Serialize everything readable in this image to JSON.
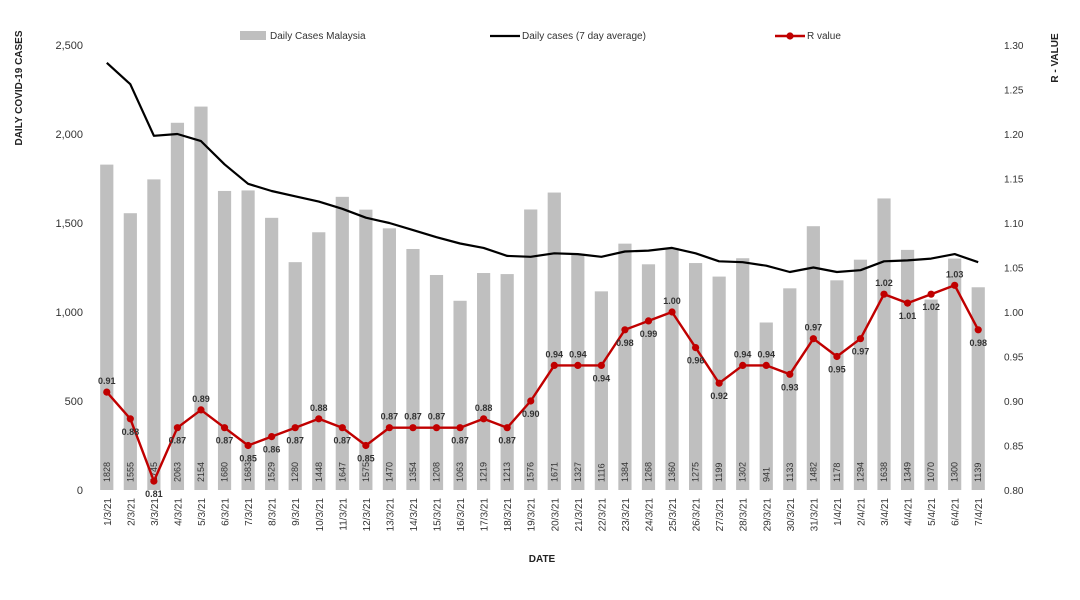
{
  "chart_data": {
    "type": "bar",
    "title": "",
    "xlabel": "DATE",
    "ylabel_left": "DAILY COVID-19 CASES",
    "ylabel_right": "R - VALUE",
    "ylim_left": [
      0,
      2500
    ],
    "ylim_right": [
      0.8,
      1.3
    ],
    "yticks_left": [
      "0",
      "500",
      "1,000",
      "1,500",
      "2,000",
      "2,500"
    ],
    "yticks_right": [
      "0.80",
      "0.85",
      "0.90",
      "0.95",
      "1.00",
      "1.05",
      "1.10",
      "1.15",
      "1.20",
      "1.25",
      "1.30"
    ],
    "grid": false,
    "legend_position": "top",
    "categories": [
      "1/3/21",
      "2/3/21",
      "3/3/21",
      "4/3/21",
      "5/3/21",
      "6/3/21",
      "7/3/21",
      "8/3/21",
      "9/3/21",
      "10/3/21",
      "11/3/21",
      "12/3/21",
      "13/3/21",
      "14/3/21",
      "15/3/21",
      "16/3/21",
      "17/3/21",
      "18/3/21",
      "19/3/21",
      "20/3/21",
      "21/3/21",
      "22/3/21",
      "23/3/21",
      "24/3/21",
      "25/3/21",
      "26/3/21",
      "27/3/21",
      "28/3/21",
      "29/3/21",
      "30/3/21",
      "31/3/21",
      "1/4/21",
      "2/4/21",
      "3/4/21",
      "4/4/21",
      "5/4/21",
      "6/4/21",
      "7/4/21"
    ],
    "series": [
      {
        "name": "Daily Cases Malaysia",
        "type": "bar",
        "axis": "left",
        "color": "#bfbfbf",
        "values": [
          1828,
          1555,
          1745,
          2063,
          2154,
          1680,
          1683,
          1529,
          1280,
          1448,
          1647,
          1575,
          1470,
          1354,
          1208,
          1063,
          1219,
          1213,
          1576,
          1671,
          1327,
          1116,
          1384,
          1268,
          1360,
          1275,
          1199,
          1302,
          941,
          1133,
          1482,
          1178,
          1294,
          1638,
          1349,
          1070,
          1300,
          1139
        ],
        "labels": [
          "1828",
          "1555",
          "1745",
          "2063",
          "2154",
          "1680",
          "1683",
          "1529",
          "1280",
          "1448",
          "1647",
          "1575",
          "1470",
          "1354",
          "1208",
          "1063",
          "1219",
          "1213",
          "1576",
          "1671",
          "1327",
          "1116",
          "1384",
          "1268",
          "1360",
          "1275",
          "1199",
          "1302",
          "941",
          "1133",
          "1482",
          "1178",
          "1294",
          "1638",
          "1349",
          "1070",
          "1300",
          "1139"
        ]
      },
      {
        "name": "Daily cases (7 day average)",
        "type": "line",
        "axis": "left",
        "color": "#000000",
        "values": [
          2400,
          2280,
          1990,
          2000,
          1960,
          1830,
          1720,
          1680,
          1650,
          1620,
          1580,
          1530,
          1500,
          1460,
          1420,
          1385,
          1360,
          1315,
          1310,
          1330,
          1325,
          1310,
          1340,
          1345,
          1360,
          1330,
          1285,
          1280,
          1260,
          1225,
          1250,
          1225,
          1235,
          1285,
          1290,
          1300,
          1325,
          1280
        ]
      },
      {
        "name": "R value",
        "type": "line",
        "axis": "right",
        "color": "#c00000",
        "values": [
          0.91,
          0.88,
          0.81,
          0.87,
          0.89,
          0.87,
          0.85,
          0.86,
          0.87,
          0.88,
          0.87,
          0.85,
          0.87,
          0.87,
          0.87,
          0.87,
          0.88,
          0.87,
          0.9,
          0.94,
          0.94,
          0.94,
          0.98,
          0.99,
          1.0,
          0.96,
          0.92,
          0.94,
          0.94,
          0.93,
          0.97,
          0.95,
          0.97,
          1.02,
          1.01,
          1.02,
          1.03,
          0.98
        ],
        "labels": [
          "0.91",
          "0.88",
          "0.81",
          "0.87",
          "0.89",
          "0.87",
          "0.85",
          "0.86",
          "0.87",
          "0.88",
          "0.87",
          "0.85",
          "0.87",
          "0.87",
          "0.87",
          "0.87",
          "0.88",
          "0.87",
          "0.90",
          "0.94",
          "0.94",
          "0.94",
          "0.98",
          "0.99",
          "1.00",
          "0.96",
          "0.92",
          "0.94",
          "0.94",
          "0.93",
          "0.97",
          "0.95",
          "0.97",
          "1.02",
          "1.01",
          "1.02",
          "1.03",
          "0.98"
        ]
      }
    ]
  }
}
